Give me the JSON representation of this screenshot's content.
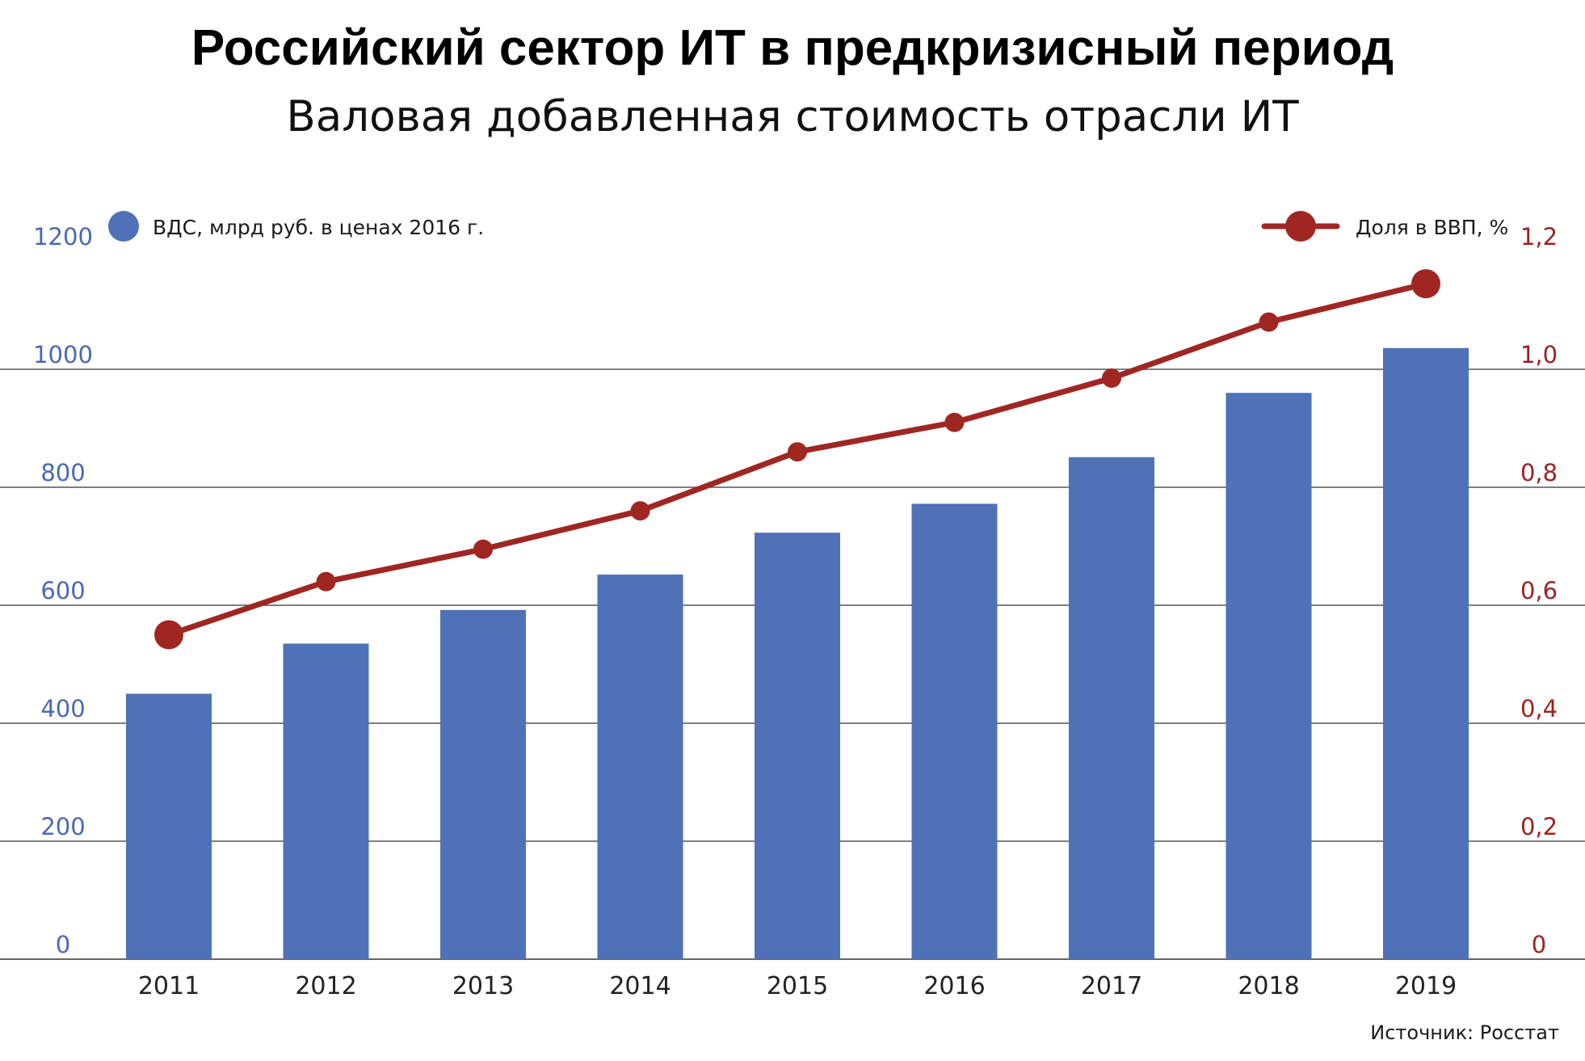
{
  "chart_data": {
    "type": "bar+line",
    "title": "Российский сектор ИТ в предкризисный период",
    "subtitle": "Валовая добавленная стоимость отрасли ИТ",
    "categories": [
      "2011",
      "2012",
      "2013",
      "2014",
      "2015",
      "2016",
      "2017",
      "2018",
      "2019"
    ],
    "series": [
      {
        "name": "ВДС, млрд руб. в ценах 2016 г.",
        "type": "bar",
        "axis": "left",
        "color": "#4f71b8",
        "values": [
          450,
          535,
          592,
          652,
          723,
          772,
          851,
          960,
          1036
        ]
      },
      {
        "name": "Доля в ВВП, %",
        "type": "line",
        "axis": "right",
        "color": "#a02622",
        "values": [
          0.55,
          0.64,
          0.695,
          0.76,
          0.86,
          0.91,
          0.985,
          1.08,
          1.145
        ]
      }
    ],
    "left_axis": {
      "ylim": [
        0,
        1200
      ],
      "ticks": [
        "0",
        "200",
        "400",
        "600",
        "800",
        "1000",
        "1200"
      ]
    },
    "right_axis": {
      "ylim": [
        0,
        1.2
      ],
      "ticks": [
        "0",
        "0,2",
        "0,4",
        "0,6",
        "0,8",
        "1,0",
        "1,2"
      ]
    },
    "grid": true,
    "legend_placement": "top",
    "source": "Источник:  Росстат"
  }
}
